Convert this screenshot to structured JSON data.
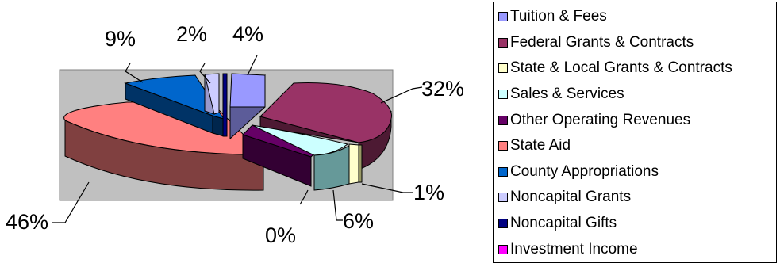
{
  "chart_data": {
    "type": "pie",
    "style": "3d-exploded",
    "title": "",
    "categories": [
      "Tuition & Fees",
      "Federal Grants & Contracts",
      "State & Local Grants & Contracts",
      "Sales & Services",
      "Other Operating Revenues",
      "State Aid",
      "County Appropriations",
      "Noncapital Grants",
      "Noncapital Gifts",
      "Investment Income"
    ],
    "values": [
      4,
      32,
      1,
      6,
      0,
      46,
      9,
      2,
      0,
      0
    ],
    "data_labels": [
      "4%",
      "32%",
      "1%",
      "6%",
      "0%",
      "46%",
      "9%",
      "2%",
      "",
      ""
    ],
    "colors": [
      "#9999FF",
      "#993366",
      "#FFFFCC",
      "#CCFFFF",
      "#660066",
      "#FF8080",
      "#0066CC",
      "#CCCCFF",
      "#000080",
      "#FF00FF"
    ],
    "plot_area_color": "#C0C0C0",
    "legend_position": "right"
  }
}
